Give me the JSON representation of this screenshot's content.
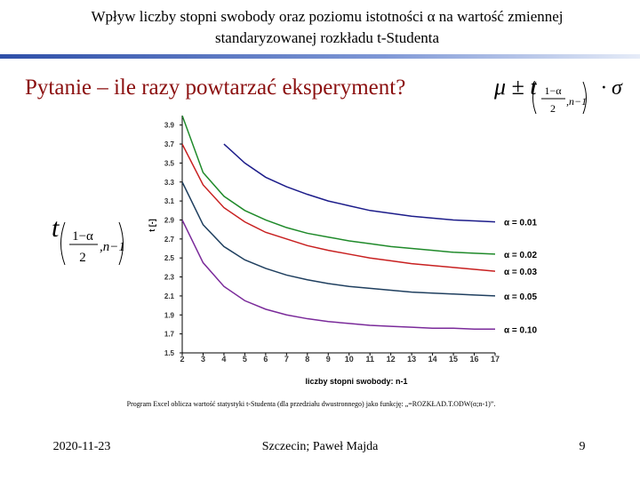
{
  "slide": {
    "title_line1": "Wpływ liczby stopni swobody oraz poziomu istotności α na wartość zmiennej",
    "title_line2": "standaryzowanej rozkładu t-Studenta",
    "question": "Pytanie – ile razy powtarzać eksperyment?",
    "note": "Program Excel oblicza wartość statystyki t-Studenta (dla przedziału dwustronnego) jako funkcję: „=ROZKŁAD.T.ODW(α;n-1)”.",
    "date": "2020-11-23",
    "author": "Szczecin; Paweł Majda",
    "page": "9"
  },
  "formulas": {
    "right": {
      "lead": "μ ± t",
      "numerator": "1−α",
      "denominator": "2",
      "suffix": ",n−1",
      "tail": "· σ"
    },
    "left": {
      "symbol": "t",
      "numerator": "1−α",
      "denominator": "2",
      "suffix": ",n−1"
    }
  },
  "chart_data": {
    "type": "line",
    "x_label": "liczby stopni swobody: n-1",
    "y_label": "t [-]",
    "x": [
      2,
      3,
      4,
      5,
      6,
      7,
      8,
      9,
      10,
      11,
      12,
      13,
      14,
      15,
      16,
      17
    ],
    "xlim": [
      2,
      17
    ],
    "xticks": [
      2,
      3,
      4,
      5,
      6,
      7,
      8,
      9,
      10,
      11,
      12,
      13,
      14,
      15,
      16,
      17
    ],
    "ylim": [
      1.5,
      4.0
    ],
    "yticks": [
      1.5,
      1.7,
      1.9,
      2.1,
      2.3,
      2.5,
      2.7,
      2.9,
      3.1,
      3.3,
      3.5,
      3.7,
      3.9
    ],
    "series": [
      {
        "name": "α = 0.01",
        "color": "#1c1c8a",
        "values": [
          null,
          null,
          3.7,
          3.5,
          3.35,
          3.25,
          3.17,
          3.1,
          3.05,
          3.0,
          2.97,
          2.94,
          2.92,
          2.9,
          2.89,
          2.88
        ]
      },
      {
        "name": "α = 0.02",
        "color": "#1f8a2a",
        "values": [
          4.0,
          3.4,
          3.15,
          3.0,
          2.9,
          2.82,
          2.76,
          2.72,
          2.68,
          2.65,
          2.62,
          2.6,
          2.58,
          2.56,
          2.55,
          2.54
        ]
      },
      {
        "name": "α = 0.03",
        "color": "#c82020",
        "values": [
          3.7,
          3.27,
          3.03,
          2.88,
          2.77,
          2.7,
          2.63,
          2.58,
          2.54,
          2.5,
          2.47,
          2.44,
          2.42,
          2.4,
          2.38,
          2.36
        ]
      },
      {
        "name": "α = 0.05",
        "color": "#1f3f5f",
        "values": [
          3.3,
          2.85,
          2.62,
          2.48,
          2.39,
          2.32,
          2.27,
          2.23,
          2.2,
          2.18,
          2.16,
          2.14,
          2.13,
          2.12,
          2.11,
          2.1
        ]
      },
      {
        "name": "α = 0.10",
        "color": "#7a2a9a",
        "values": [
          2.9,
          2.45,
          2.2,
          2.05,
          1.96,
          1.9,
          1.86,
          1.83,
          1.81,
          1.79,
          1.78,
          1.77,
          1.76,
          1.76,
          1.75,
          1.75
        ]
      }
    ],
    "grid": false
  }
}
